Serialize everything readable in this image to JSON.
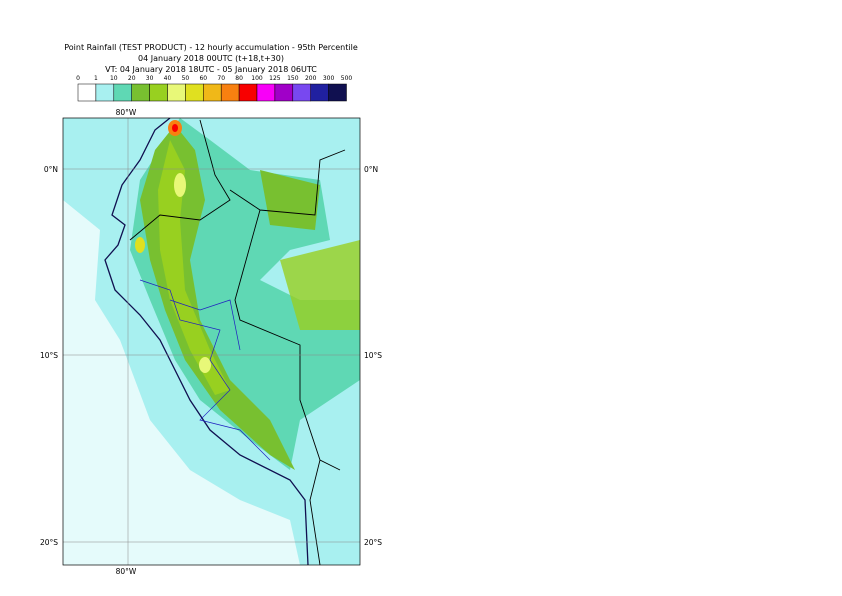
{
  "header": {
    "title": "Point Rainfall (TEST PRODUCT) - 12 hourly accumulation - 95th Percentile",
    "base_time": "04 January 2018 00UTC (t+18,t+30)",
    "valid_time": "VT: 04 January 2018 18UTC - 05 January 2018 06UTC"
  },
  "legend": {
    "thresholds": [
      0,
      1,
      10,
      20,
      30,
      40,
      50,
      60,
      70,
      80,
      100,
      125,
      150,
      200,
      300,
      500
    ],
    "colors": [
      "#ffffff",
      "#a8f0f0",
      "#5fd8b4",
      "#78c030",
      "#98d020",
      "#e8f878",
      "#e0e020",
      "#f0b818",
      "#f88010",
      "#f80000",
      "#f800f8",
      "#a000c8",
      "#7848f0",
      "#2020a0",
      "#101050"
    ]
  },
  "map": {
    "lon_labels": [
      "80°W"
    ],
    "lat_labels": [
      "0°N",
      "10°S",
      "20°S"
    ]
  }
}
